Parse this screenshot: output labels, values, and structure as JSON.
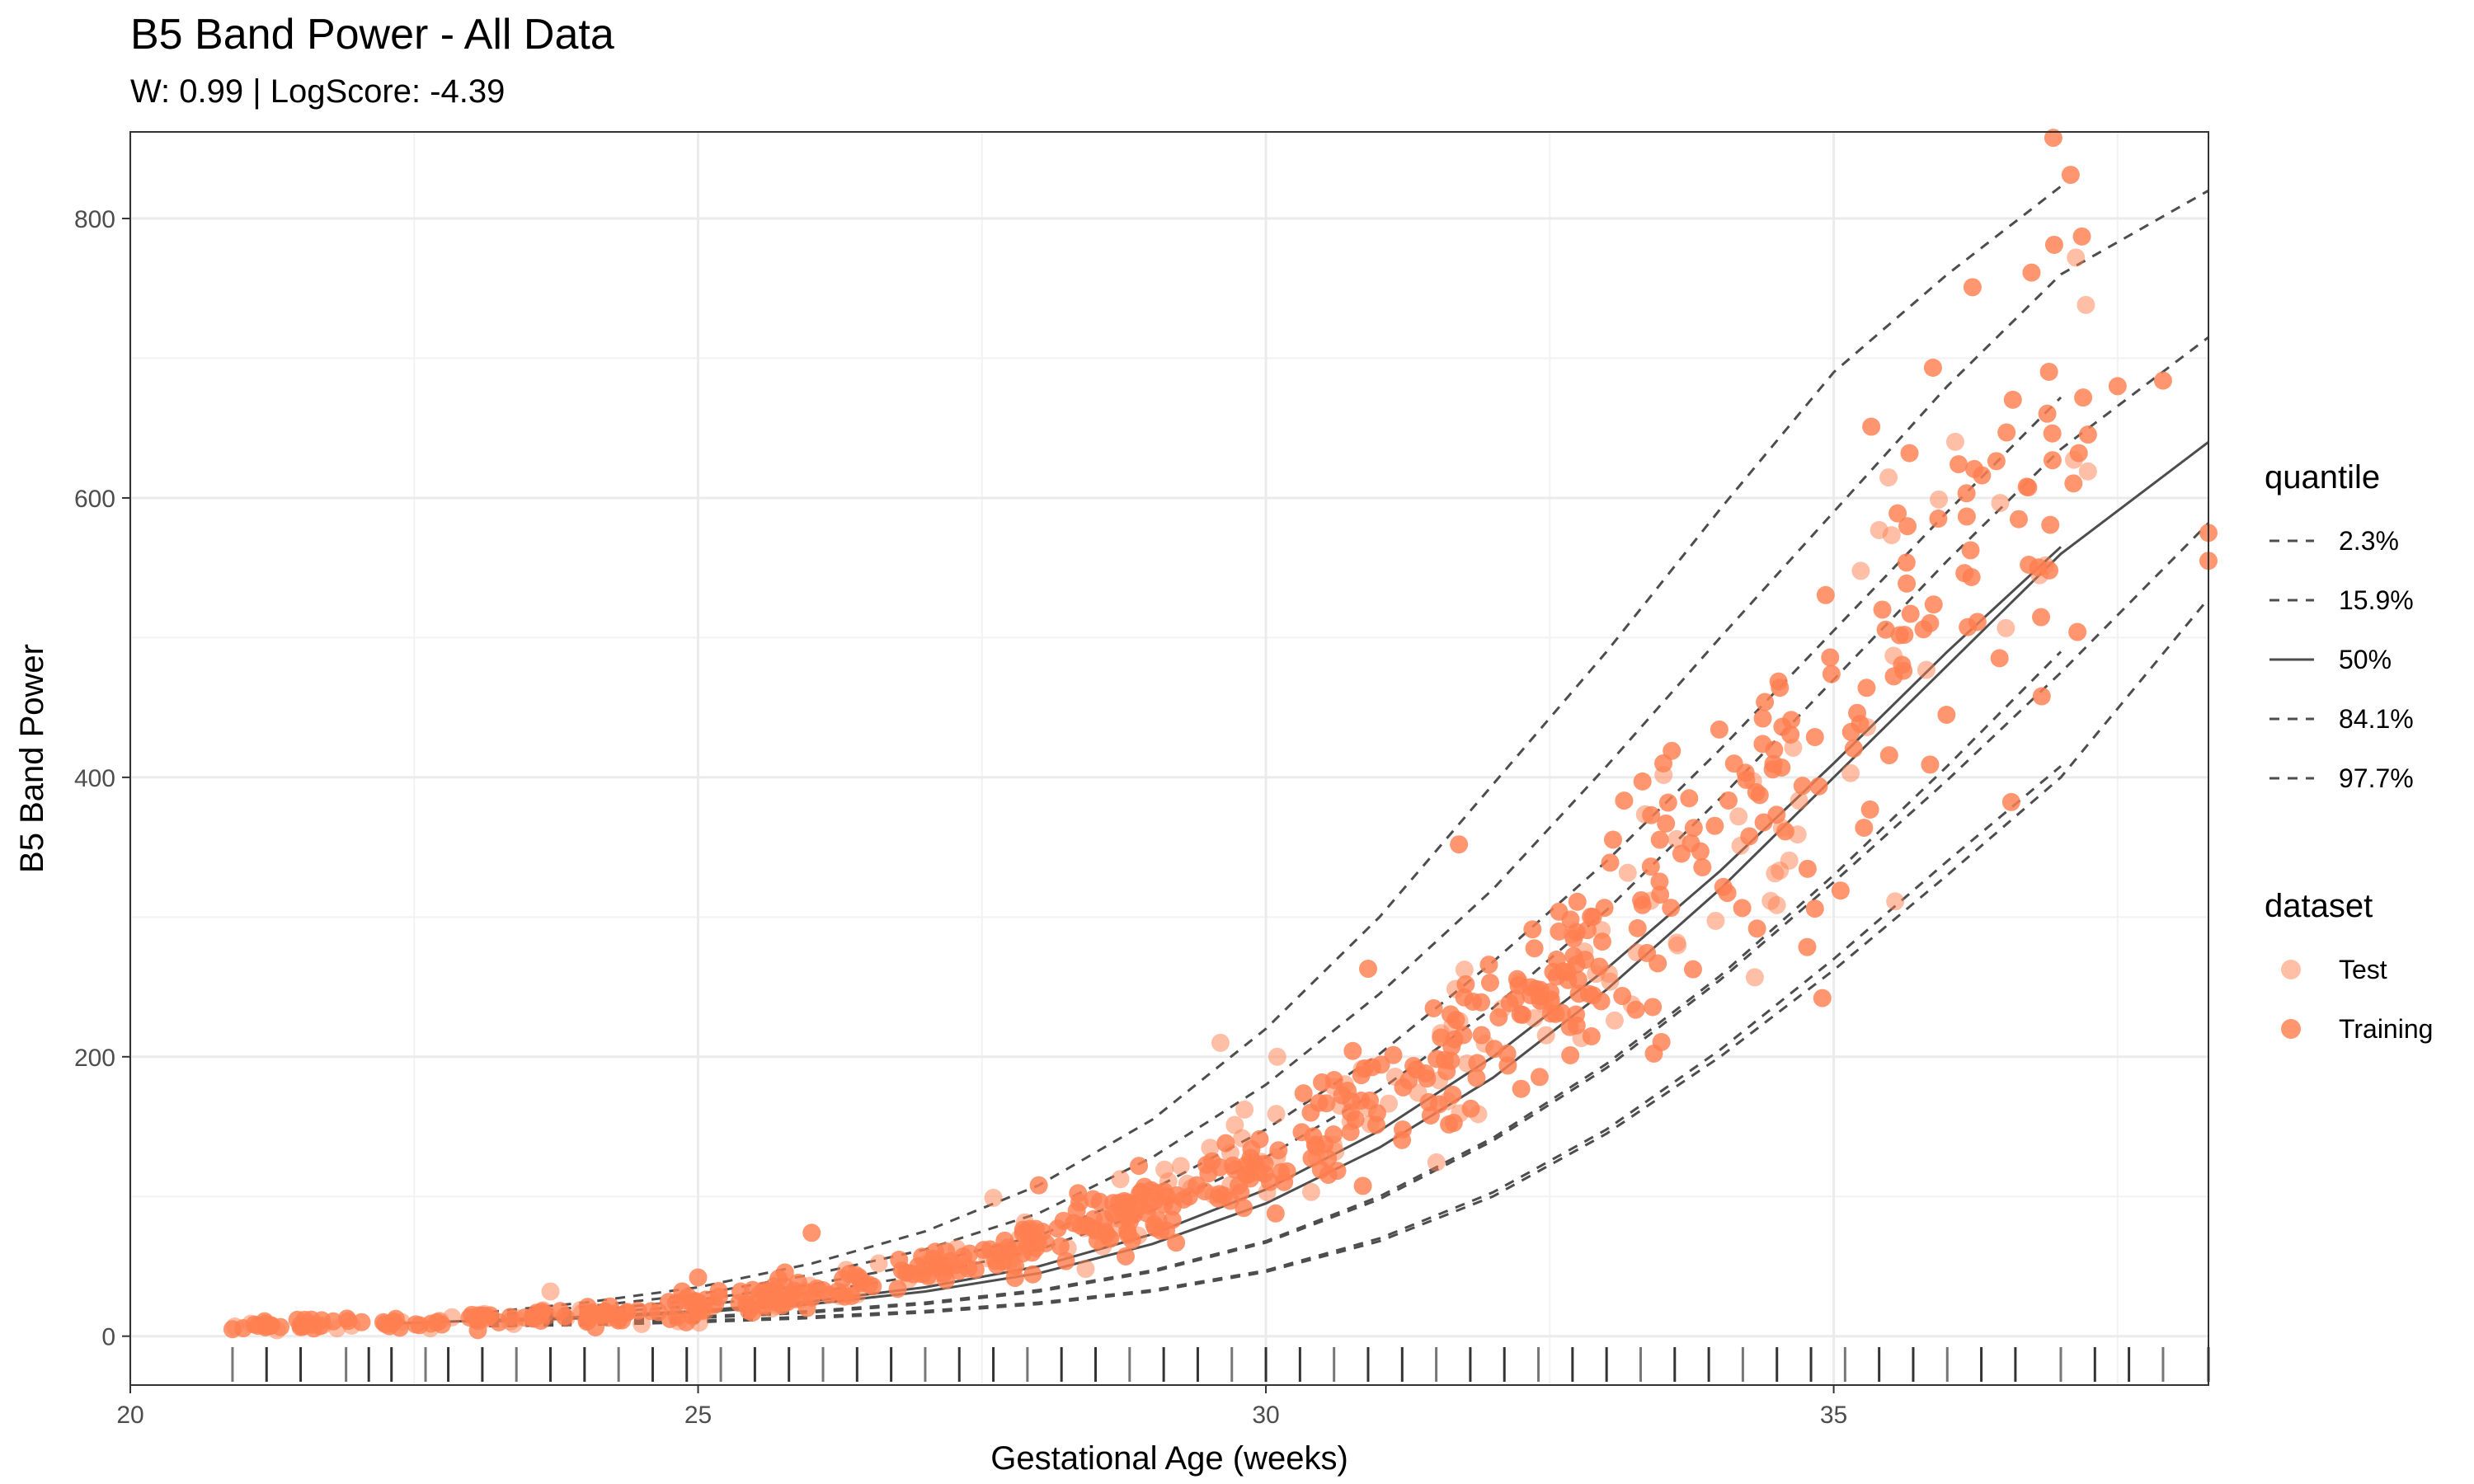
{
  "chart_data": {
    "type": "scatter",
    "title": "B5 Band Power - All Data",
    "subtitle": "W: 0.99 | LogScore: -4.39",
    "xlabel": "Gestational Age (weeks)",
    "ylabel": "B5 Band Power",
    "xlim": [
      20,
      38.3
    ],
    "ylim": [
      -35,
      862
    ],
    "x_ticks": [
      20,
      25,
      30,
      35
    ],
    "y_ticks": [
      0,
      200,
      400,
      600,
      800
    ],
    "grid": true,
    "legend_position": "right",
    "point_color": "#FF7F50",
    "quantile_legend": {
      "title": "quantile",
      "entries": [
        {
          "label": "2.3%",
          "style": "dashed"
        },
        {
          "label": "15.9%",
          "style": "dashed"
        },
        {
          "label": "50%",
          "style": "solid"
        },
        {
          "label": "84.1%",
          "style": "dashed"
        },
        {
          "label": "97.7%",
          "style": "dashed"
        }
      ]
    },
    "dataset_legend": {
      "title": "dataset",
      "entries": [
        {
          "label": "Test",
          "opacity": 0.5
        },
        {
          "label": "Training",
          "opacity": 0.82
        }
      ]
    },
    "quantile_curves": [
      {
        "label": "97.7%",
        "style": "dashed",
        "points": [
          [
            23,
            16
          ],
          [
            24,
            24
          ],
          [
            25,
            35
          ],
          [
            26,
            52
          ],
          [
            27,
            75
          ],
          [
            28,
            108
          ],
          [
            29,
            155
          ],
          [
            30,
            220
          ],
          [
            31,
            300
          ],
          [
            32,
            395
          ],
          [
            33,
            490
          ],
          [
            34,
            592
          ],
          [
            35,
            690
          ],
          [
            36,
            760
          ],
          [
            37,
            823
          ]
        ]
      },
      {
        "label": "97.7%",
        "style": "dashed",
        "points": [
          [
            23,
            14
          ],
          [
            24,
            21
          ],
          [
            25,
            30
          ],
          [
            26,
            44
          ],
          [
            27,
            62
          ],
          [
            28,
            88
          ],
          [
            29,
            128
          ],
          [
            30,
            180
          ],
          [
            31,
            245
          ],
          [
            32,
            320
          ],
          [
            33,
            408
          ],
          [
            34,
            500
          ],
          [
            35,
            590
          ],
          [
            36,
            680
          ],
          [
            37,
            760
          ],
          [
            38.3,
            820
          ]
        ]
      },
      {
        "label": "84.1%",
        "style": "dashed",
        "points": [
          [
            23,
            13
          ],
          [
            24,
            18
          ],
          [
            25,
            26
          ],
          [
            26,
            37
          ],
          [
            27,
            52
          ],
          [
            28,
            72
          ],
          [
            29,
            105
          ],
          [
            30,
            148
          ],
          [
            31,
            202
          ],
          [
            32,
            268
          ],
          [
            33,
            340
          ],
          [
            34,
            420
          ],
          [
            35,
            505
          ],
          [
            36,
            590
          ],
          [
            37,
            672
          ]
        ]
      },
      {
        "label": "84.1%",
        "style": "dashed",
        "points": [
          [
            23,
            12
          ],
          [
            24,
            16
          ],
          [
            25,
            22
          ],
          [
            26,
            31
          ],
          [
            27,
            44
          ],
          [
            28,
            62
          ],
          [
            29,
            90
          ],
          [
            30,
            128
          ],
          [
            31,
            176
          ],
          [
            32,
            235
          ],
          [
            33,
            305
          ],
          [
            34,
            385
          ],
          [
            35,
            470
          ],
          [
            36,
            555
          ],
          [
            37,
            635
          ],
          [
            38.3,
            715
          ]
        ]
      },
      {
        "label": "50%",
        "style": "solid",
        "points": [
          [
            22.3,
            9
          ],
          [
            23,
            11
          ],
          [
            24,
            14
          ],
          [
            25,
            18
          ],
          [
            26,
            25
          ],
          [
            27,
            35
          ],
          [
            28,
            50
          ],
          [
            29,
            73
          ],
          [
            30,
            105
          ],
          [
            31,
            147
          ],
          [
            32,
            200
          ],
          [
            33,
            263
          ],
          [
            34,
            333
          ],
          [
            35,
            410
          ],
          [
            36,
            490
          ],
          [
            37,
            565
          ]
        ]
      },
      {
        "label": "50%",
        "style": "solid",
        "points": [
          [
            23,
            10
          ],
          [
            24,
            13
          ],
          [
            25,
            17
          ],
          [
            26,
            23
          ],
          [
            27,
            32
          ],
          [
            28,
            45
          ],
          [
            29,
            66
          ],
          [
            30,
            95
          ],
          [
            31,
            135
          ],
          [
            32,
            185
          ],
          [
            33,
            248
          ],
          [
            34,
            320
          ],
          [
            35,
            400
          ],
          [
            36,
            480
          ],
          [
            37,
            560
          ],
          [
            38.3,
            640
          ]
        ]
      },
      {
        "label": "15.9%",
        "style": "dashed",
        "points": [
          [
            23,
            9
          ],
          [
            24,
            11
          ],
          [
            25,
            14
          ],
          [
            26,
            18
          ],
          [
            27,
            24
          ],
          [
            28,
            33
          ],
          [
            29,
            47
          ],
          [
            30,
            68
          ],
          [
            31,
            100
          ],
          [
            32,
            142
          ],
          [
            33,
            195
          ],
          [
            34,
            258
          ],
          [
            35,
            330
          ],
          [
            36,
            408
          ],
          [
            37,
            490
          ]
        ]
      },
      {
        "label": "15.9%",
        "style": "dashed",
        "points": [
          [
            23,
            8
          ],
          [
            24,
            10
          ],
          [
            25,
            13
          ],
          [
            26,
            17
          ],
          [
            27,
            23
          ],
          [
            28,
            32
          ],
          [
            29,
            46
          ],
          [
            30,
            67
          ],
          [
            31,
            98
          ],
          [
            32,
            140
          ],
          [
            33,
            192
          ],
          [
            34,
            255
          ],
          [
            35,
            325
          ],
          [
            36,
            398
          ],
          [
            37,
            475
          ],
          [
            38.3,
            582
          ]
        ]
      },
      {
        "label": "2.3%",
        "style": "dashed",
        "points": [
          [
            23,
            7
          ],
          [
            24,
            9
          ],
          [
            25,
            11
          ],
          [
            26,
            14
          ],
          [
            27,
            18
          ],
          [
            28,
            24
          ],
          [
            29,
            33
          ],
          [
            30,
            47
          ],
          [
            31,
            70
          ],
          [
            32,
            103
          ],
          [
            33,
            148
          ],
          [
            34,
            205
          ],
          [
            35,
            270
          ],
          [
            36,
            340
          ],
          [
            37,
            408
          ]
        ]
      },
      {
        "label": "2.3%",
        "style": "dashed",
        "points": [
          [
            23,
            7
          ],
          [
            24,
            8
          ],
          [
            25,
            10
          ],
          [
            26,
            13
          ],
          [
            27,
            17
          ],
          [
            28,
            23
          ],
          [
            29,
            32
          ],
          [
            30,
            46
          ],
          [
            31,
            68
          ],
          [
            32,
            100
          ],
          [
            33,
            145
          ],
          [
            34,
            200
          ],
          [
            35,
            262
          ],
          [
            36,
            330
          ],
          [
            37,
            400
          ],
          [
            38.3,
            528
          ]
        ]
      }
    ],
    "highlight_points": [
      {
        "dataset": "Training",
        "x": 20.9,
        "y": 5
      },
      {
        "dataset": "Training",
        "x": 21.2,
        "y": 7
      },
      {
        "dataset": "Training",
        "x": 21.5,
        "y": 8
      },
      {
        "dataset": "Training",
        "x": 22.3,
        "y": 9
      },
      {
        "dataset": "Training",
        "x": 22.7,
        "y": 10
      },
      {
        "dataset": "Test",
        "x": 23.7,
        "y": 32
      },
      {
        "dataset": "Training",
        "x": 25.0,
        "y": 42
      },
      {
        "dataset": "Training",
        "x": 26.0,
        "y": 74
      },
      {
        "dataset": "Test",
        "x": 27.6,
        "y": 99
      },
      {
        "dataset": "Training",
        "x": 28.0,
        "y": 108
      },
      {
        "dataset": "Test",
        "x": 29.6,
        "y": 210
      },
      {
        "dataset": "Test",
        "x": 30.1,
        "y": 200
      },
      {
        "dataset": "Training",
        "x": 30.9,
        "y": 263
      },
      {
        "dataset": "Training",
        "x": 31.7,
        "y": 352
      },
      {
        "dataset": "Training",
        "x": 33.5,
        "y": 410
      },
      {
        "dataset": "Training",
        "x": 34.9,
        "y": 242
      },
      {
        "dataset": "Test",
        "x": 35.4,
        "y": 577
      },
      {
        "dataset": "Training",
        "x": 36.7,
        "y": 608
      },
      {
        "dataset": "Training",
        "x": 37.5,
        "y": 680
      },
      {
        "dataset": "Training",
        "x": 37.9,
        "y": 684
      },
      {
        "dataset": "Training",
        "x": 38.3,
        "y": 575
      },
      {
        "dataset": "Training",
        "x": 38.3,
        "y": 555
      }
    ],
    "rug_x": [
      20.9,
      21.2,
      21.5,
      21.9,
      22.1,
      22.3,
      22.6,
      22.8,
      23.1,
      23.4,
      23.7,
      24.0,
      24.3,
      24.6,
      24.9,
      25.2,
      25.5,
      25.8,
      26.1,
      26.4,
      26.7,
      27.0,
      27.3,
      27.6,
      27.9,
      28.2,
      28.5,
      28.8,
      29.1,
      29.4,
      29.7,
      30.0,
      30.3,
      30.6,
      30.9,
      31.2,
      31.5,
      31.8,
      32.1,
      32.4,
      32.7,
      33.0,
      33.3,
      33.6,
      33.9,
      34.2,
      34.5,
      34.8,
      35.1,
      35.4,
      35.7,
      36.0,
      36.3,
      36.6,
      37.0,
      37.3,
      37.6,
      37.9,
      38.3
    ]
  }
}
